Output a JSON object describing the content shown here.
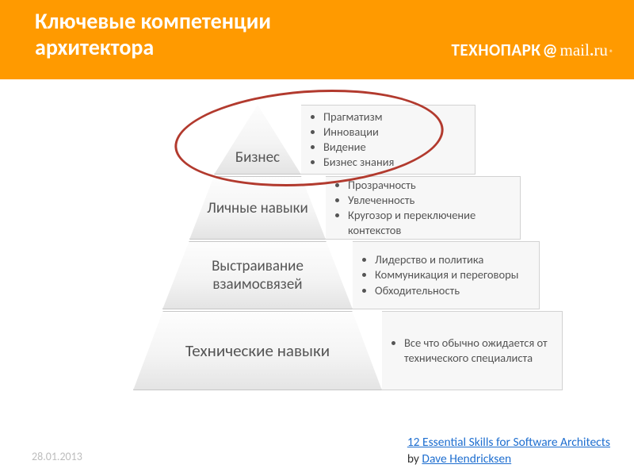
{
  "header": {
    "title_line1": "Ключевые компетенции",
    "title_line2": "архитектора",
    "brand_tp": "ТЕХНОПАРК",
    "brand_at": "@",
    "brand_mail": "mail",
    "brand_dot": ".",
    "brand_ru": "ru",
    "brand_reg": "®",
    "bg_color": "#ff9a00",
    "text_color": "#ffffff",
    "title_fontsize": 28
  },
  "pyramid": {
    "type": "pyramid",
    "highlight": {
      "level": 0,
      "stroke": "#b23a2e",
      "stroke_width": 3
    },
    "cell_gradient_from": "#fdfdfd",
    "cell_gradient_to": "#e4e4e4",
    "cell_border": "#c6c6c6",
    "side_bg": "#f7f7f7",
    "side_border": "#d2d2d2",
    "text_color": "#555555",
    "label_fontsize": 19,
    "bullet_fontsize": 14.5,
    "levels": [
      {
        "label": "Бизнес",
        "bullets": [
          "Прагматизм",
          "Инновации",
          "Видение",
          "Бизнес знания"
        ]
      },
      {
        "label": "Личные навыки",
        "bullets": [
          "Прозрачность",
          "Увлеченность",
          "Кругозор и переключение контекстов"
        ]
      },
      {
        "label": "Выстраивание взаимосвязей",
        "bullets": [
          "Лидерство и политика",
          "Коммуникация и переговоры",
          "Обходительность"
        ]
      },
      {
        "label": "Технические навыки",
        "bullets": [
          "Все что обычно ожидается от технического специалиста"
        ]
      }
    ]
  },
  "footer": {
    "date": "28.01.2013",
    "ref_title": "12 Essential Skills for Software Architects",
    "ref_by": "by ",
    "ref_author": "Dave Hendricksen",
    "link_color": "#1f6fd0",
    "date_color": "#bdbdbd"
  }
}
